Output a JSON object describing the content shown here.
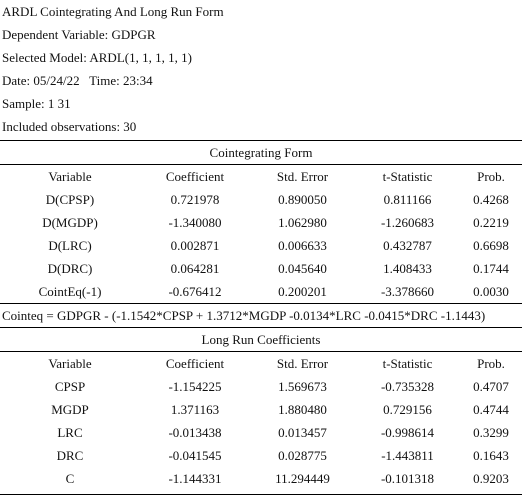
{
  "header": {
    "title": "ARDL Cointegrating And Long Run Form",
    "dependent_variable": "Dependent Variable: GDPGR",
    "selected_model": "Selected Model: ARDL(1, 1, 1, 1, 1)",
    "date_time": "Date: 05/24/22   Time: 23:34",
    "sample": "Sample: 1 31",
    "included_observations": "Included observations: 30"
  },
  "columns": {
    "variable": "Variable",
    "coefficient": "Coefficient",
    "std_error": "Std. Error",
    "t_statistic": "t-Statistic",
    "prob": "Prob."
  },
  "cointegrating_form": {
    "title": "Cointegrating Form",
    "rows": [
      {
        "variable": "D(CPSP)",
        "coefficient": "0.721978",
        "std_error": "0.890050",
        "t_statistic": "0.811166",
        "prob": "0.4268"
      },
      {
        "variable": "D(MGDP)",
        "coefficient": "-1.340080",
        "std_error": "1.062980",
        "t_statistic": "-1.260683",
        "prob": "0.2219"
      },
      {
        "variable": "D(LRC)",
        "coefficient": "0.002871",
        "std_error": "0.006633",
        "t_statistic": "0.432787",
        "prob": "0.6698"
      },
      {
        "variable": "D(DRC)",
        "coefficient": "0.064281",
        "std_error": "0.045640",
        "t_statistic": "1.408433",
        "prob": "0.1744"
      },
      {
        "variable": "CointEq(-1)",
        "coefficient": "-0.676412",
        "std_error": "0.200201",
        "t_statistic": "-3.378660",
        "prob": "0.0030"
      }
    ]
  },
  "cointeq_equation": "Cointeq = GDPGR - (-1.1542*CPSP + 1.3712*MGDP -0.0134*LRC -0.0415*DRC -1.1443)",
  "long_run": {
    "title": "Long Run Coefficients",
    "rows": [
      {
        "variable": "CPSP",
        "coefficient": "-1.154225",
        "std_error": "1.569673",
        "t_statistic": "-0.735328",
        "prob": "0.4707"
      },
      {
        "variable": "MGDP",
        "coefficient": "1.371163",
        "std_error": "1.880480",
        "t_statistic": "0.729156",
        "prob": "0.4744"
      },
      {
        "variable": "LRC",
        "coefficient": "-0.013438",
        "std_error": "0.013457",
        "t_statistic": "-0.998614",
        "prob": "0.3299"
      },
      {
        "variable": "DRC",
        "coefficient": "-0.041545",
        "std_error": "0.028775",
        "t_statistic": "-1.443811",
        "prob": "0.1643"
      },
      {
        "variable": "C",
        "coefficient": "-1.144331",
        "std_error": "11.294449",
        "t_statistic": "-0.101318",
        "prob": "0.9203"
      }
    ]
  }
}
